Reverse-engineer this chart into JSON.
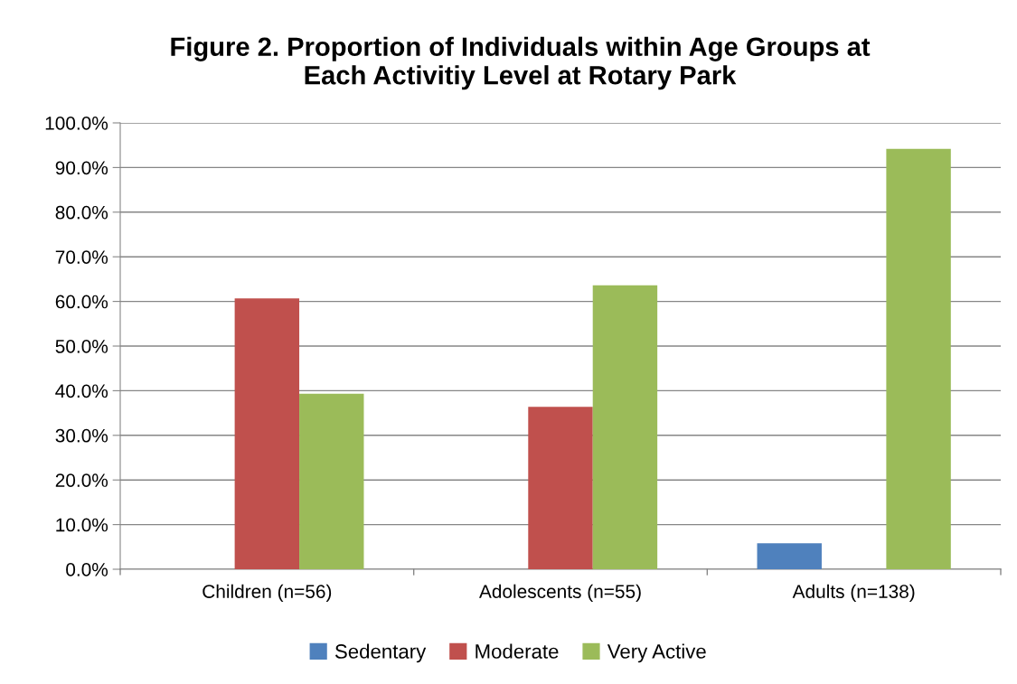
{
  "chart_data": {
    "type": "bar",
    "title": "Figure 2. Proportion of Individuals within Age Groups at\nEach Activitiy Level at Rotary Park",
    "categories": [
      "Children (n=56)",
      "Adolescents (n=55)",
      "Adults (n=138)"
    ],
    "series": [
      {
        "name": "Sedentary",
        "color": "#4f81bd",
        "values": [
          0,
          0,
          5.8
        ]
      },
      {
        "name": "Moderate",
        "color": "#c0504d",
        "values": [
          60.7,
          36.4,
          0
        ]
      },
      {
        "name": "Very Active",
        "color": "#9bbb59",
        "values": [
          39.3,
          63.6,
          94.2
        ]
      }
    ],
    "ylim": [
      0,
      100
    ],
    "yticks": [
      {
        "value": 0,
        "label": "0.0%"
      },
      {
        "value": 10,
        "label": "10.0%"
      },
      {
        "value": 20,
        "label": "20.0%"
      },
      {
        "value": 30,
        "label": "30.0%"
      },
      {
        "value": 40,
        "label": "40.0%"
      },
      {
        "value": 50,
        "label": "50.0%"
      },
      {
        "value": 60,
        "label": "60.0%"
      },
      {
        "value": 70,
        "label": "70.0%"
      },
      {
        "value": 80,
        "label": "80.0%"
      },
      {
        "value": 90,
        "label": "90.0%"
      },
      {
        "value": 100,
        "label": "100.0%"
      }
    ],
    "grid": "y",
    "legend": "bottom"
  }
}
